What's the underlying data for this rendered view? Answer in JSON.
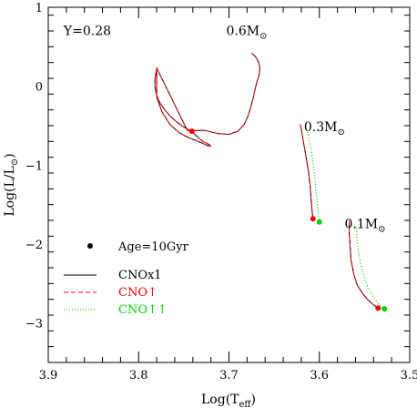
{
  "chart_data": {
    "type": "line",
    "xlabel": "Log(T",
    "xlabel_sub": "eff",
    "xlabel_end": ")",
    "ylabel": "Log(L/L",
    "ylabel_sub": "⊙",
    "ylabel_end": ")",
    "xlim": [
      3.9,
      3.5
    ],
    "ylim": [
      -3.5,
      1
    ],
    "x_ticks": [
      3.9,
      3.8,
      3.7,
      3.6,
      3.5
    ],
    "x_tick_labels": [
      "3.9",
      "3.8",
      "3.7",
      "3.6",
      "3.5"
    ],
    "y_ticks": [
      1,
      0,
      -1,
      -2,
      -3
    ],
    "y_tick_labels": [
      "1",
      "0",
      "−1",
      "−2",
      "−3"
    ],
    "grid": false,
    "annotations": [
      {
        "text": "Y=0.28",
        "x": 3.883,
        "y": 0.65
      },
      {
        "text": "0.6M",
        "sub": "⊙",
        "x": 3.703,
        "y": 0.65
      },
      {
        "text": "0.3M",
        "sub": "⊙",
        "x": 3.617,
        "y": -0.57
      },
      {
        "text": "0.1M",
        "sub": "⊙",
        "x": 3.572,
        "y": -1.8
      }
    ],
    "legend": {
      "placement": "lower-left",
      "entries": [
        {
          "symbol": "dot",
          "label": "Age=10Gyr",
          "color": "#000000"
        },
        {
          "symbol": "solid",
          "label": "CNOx1",
          "color": "#000000"
        },
        {
          "symbol": "dashed",
          "label": "CNO↑",
          "color": "#ff0000"
        },
        {
          "symbol": "dotted",
          "label": "CNO↑↑",
          "color": "#00d000"
        }
      ]
    },
    "series": [
      {
        "mass": "0.6",
        "style": "solid",
        "color": "#000000",
        "x": [
          3.779,
          3.78,
          3.781,
          3.782,
          3.782,
          3.781,
          3.779,
          3.776,
          3.771,
          3.765,
          3.758,
          3.751,
          3.745,
          3.741,
          3.737,
          3.733,
          3.729,
          3.725,
          3.722,
          3.72,
          3.722,
          3.728,
          3.736,
          3.745,
          3.755,
          3.765,
          3.774,
          3.78,
          3.78,
          3.746,
          3.727,
          3.712,
          3.7,
          3.69,
          3.683,
          3.679,
          3.676,
          3.673,
          3.671,
          3.669,
          3.667,
          3.666,
          3.666,
          3.667,
          3.668,
          3.669,
          3.67,
          3.671,
          3.673,
          3.674,
          3.675
        ],
        "y": [
          0.23,
          0.21,
          0.16,
          0.08,
          0.0,
          -0.07,
          -0.15,
          -0.22,
          -0.3,
          -0.38,
          -0.45,
          -0.51,
          -0.55,
          -0.58,
          -0.62,
          -0.66,
          -0.7,
          -0.72,
          -0.74,
          -0.76,
          -0.76,
          -0.73,
          -0.69,
          -0.65,
          -0.59,
          -0.49,
          -0.33,
          -0.14,
          0.23,
          -0.56,
          -0.56,
          -0.6,
          -0.61,
          -0.57,
          -0.48,
          -0.38,
          -0.27,
          -0.14,
          -0.03,
          0.06,
          0.13,
          0.19,
          0.25,
          0.3,
          0.32,
          0.34,
          0.36,
          0.38,
          0.4,
          0.41,
          0.42
        ]
      },
      {
        "mass": "0.6",
        "style": "dashed",
        "color": "#ff0000",
        "x": [
          3.779,
          3.78,
          3.781,
          3.782,
          3.782,
          3.781,
          3.779,
          3.776,
          3.771,
          3.765,
          3.758,
          3.751,
          3.745,
          3.741,
          3.737,
          3.733,
          3.729,
          3.725,
          3.722,
          3.72,
          3.722,
          3.728,
          3.736,
          3.745,
          3.755,
          3.765,
          3.774,
          3.78,
          3.78,
          3.746,
          3.727,
          3.712,
          3.7,
          3.69,
          3.683,
          3.679,
          3.676,
          3.673,
          3.671,
          3.669,
          3.667,
          3.666,
          3.666,
          3.667,
          3.668,
          3.669,
          3.67,
          3.671,
          3.673,
          3.674,
          3.675
        ],
        "y": [
          0.23,
          0.21,
          0.16,
          0.08,
          0.0,
          -0.07,
          -0.15,
          -0.22,
          -0.3,
          -0.38,
          -0.45,
          -0.51,
          -0.55,
          -0.58,
          -0.62,
          -0.66,
          -0.7,
          -0.72,
          -0.74,
          -0.76,
          -0.76,
          -0.73,
          -0.69,
          -0.65,
          -0.59,
          -0.49,
          -0.33,
          -0.14,
          0.23,
          -0.56,
          -0.56,
          -0.6,
          -0.61,
          -0.57,
          -0.48,
          -0.38,
          -0.27,
          -0.14,
          -0.03,
          0.06,
          0.13,
          0.19,
          0.25,
          0.3,
          0.32,
          0.34,
          0.36,
          0.38,
          0.4,
          0.41,
          0.42
        ]
      },
      {
        "mass": "0.3",
        "style": "solid",
        "color": "#000000",
        "x": [
          3.621,
          3.618,
          3.615,
          3.612,
          3.61,
          3.609,
          3.608,
          3.607
        ],
        "y": [
          -0.48,
          -0.68,
          -0.88,
          -1.08,
          -1.28,
          -1.45,
          -1.58,
          -1.68
        ]
      },
      {
        "mass": "0.3",
        "style": "dashed",
        "color": "#ff0000",
        "x": [
          3.621,
          3.618,
          3.615,
          3.612,
          3.61,
          3.609,
          3.608,
          3.607
        ],
        "y": [
          -0.48,
          -0.68,
          -0.88,
          -1.08,
          -1.28,
          -1.45,
          -1.58,
          -1.68
        ]
      },
      {
        "mass": "0.3",
        "style": "dotted",
        "color": "#00d000",
        "x": [
          3.613,
          3.609,
          3.606,
          3.604,
          3.602,
          3.601,
          3.6
        ],
        "y": [
          -0.58,
          -0.8,
          -1.05,
          -1.3,
          -1.5,
          -1.63,
          -1.72
        ]
      },
      {
        "mass": "0.1",
        "style": "solid",
        "color": "#000000",
        "x": [
          3.567,
          3.567,
          3.566,
          3.565,
          3.562,
          3.558,
          3.552,
          3.546,
          3.54,
          3.535
        ],
        "y": [
          -1.7,
          -1.85,
          -2.02,
          -2.2,
          -2.38,
          -2.52,
          -2.63,
          -2.71,
          -2.77,
          -2.81
        ]
      },
      {
        "mass": "0.1",
        "style": "dashed",
        "color": "#ff0000",
        "x": [
          3.567,
          3.567,
          3.566,
          3.565,
          3.562,
          3.558,
          3.552,
          3.546,
          3.54,
          3.535
        ],
        "y": [
          -1.7,
          -1.85,
          -2.02,
          -2.2,
          -2.38,
          -2.52,
          -2.63,
          -2.71,
          -2.77,
          -2.81
        ]
      },
      {
        "mass": "0.1",
        "style": "dotted",
        "color": "#00d000",
        "x": [
          3.559,
          3.558,
          3.556,
          3.553,
          3.549,
          3.544,
          3.539,
          3.535,
          3.531,
          3.528
        ],
        "y": [
          -1.8,
          -1.97,
          -2.15,
          -2.32,
          -2.47,
          -2.6,
          -2.69,
          -2.75,
          -2.79,
          -2.82
        ]
      }
    ],
    "age_points": [
      {
        "x": 3.741,
        "y": -0.57,
        "color": "#ff0000"
      },
      {
        "x": 3.607,
        "y": -1.68,
        "color": "#ff0000"
      },
      {
        "x": 3.6,
        "y": -1.72,
        "color": "#00d000"
      },
      {
        "x": 3.535,
        "y": -2.81,
        "color": "#ff0000"
      },
      {
        "x": 3.528,
        "y": -2.82,
        "color": "#00d000"
      }
    ]
  }
}
